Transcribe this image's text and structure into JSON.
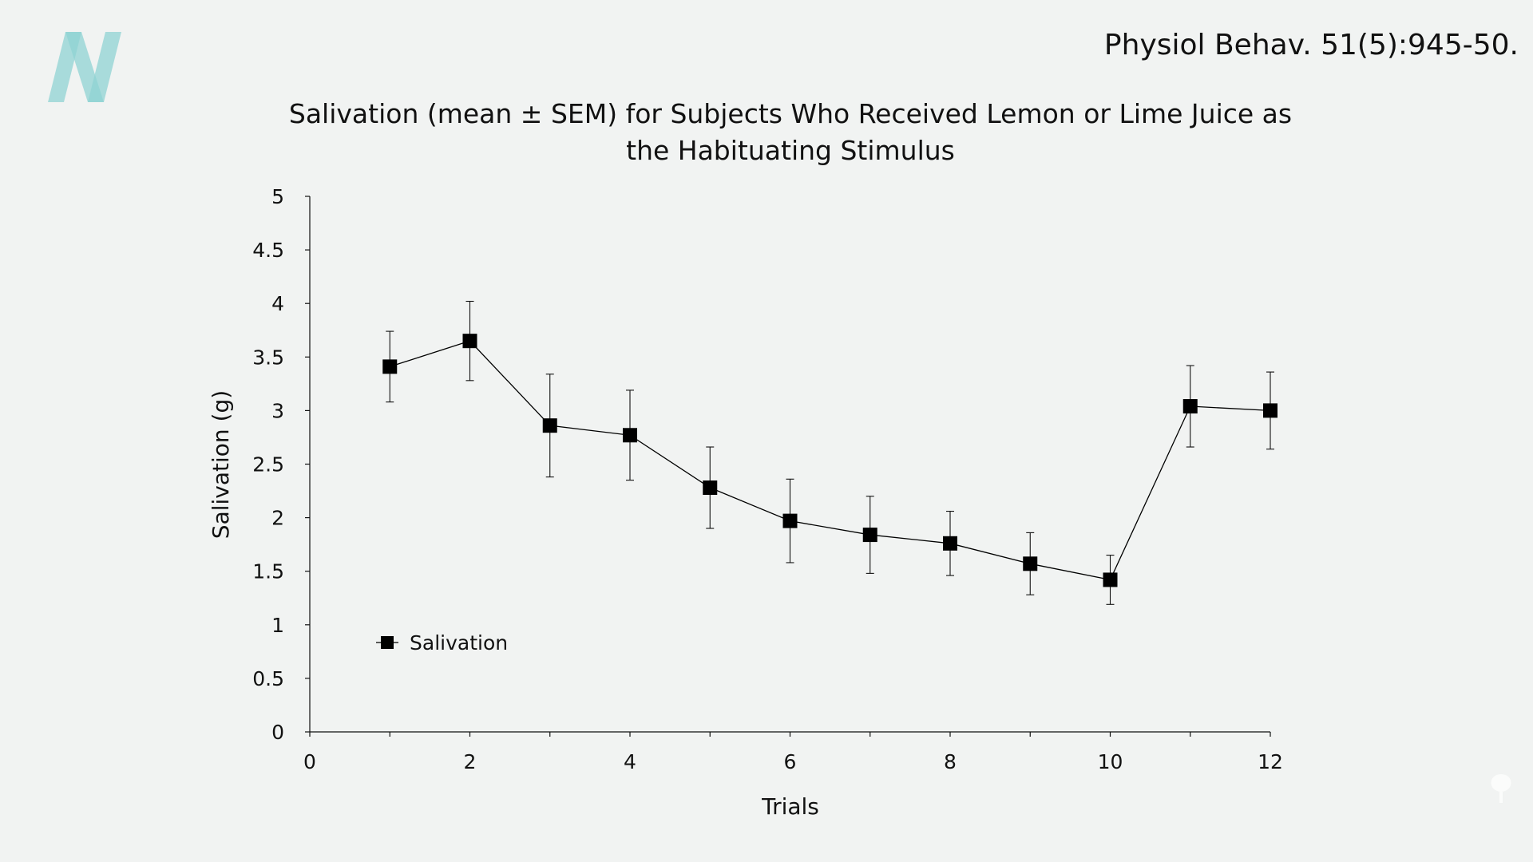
{
  "citation": "Physiol Behav. 51(5):945-50.",
  "colors": {
    "logo": "#8fd3d3",
    "series": "#000000",
    "background": "#f1f3f2"
  },
  "chart_data": {
    "type": "line",
    "title_lines": [
      "Salivation (mean ± SEM) for Subjects Who Received Lemon or Lime Juice as",
      "the Habituating Stimulus"
    ],
    "xlabel": "Trials",
    "ylabel": "Salivation (g)",
    "xlim": [
      0,
      12
    ],
    "ylim": [
      0,
      5
    ],
    "xticks": [
      "0",
      "2",
      "4",
      "6",
      "8",
      "10",
      "12"
    ],
    "yticks": [
      "0",
      "0.5",
      "1",
      "1.5",
      "2",
      "2.5",
      "3",
      "3.5",
      "4",
      "4.5",
      "5"
    ],
    "grid": false,
    "legend_placement": "lower-left",
    "series": [
      {
        "name": "Salivation",
        "marker": "square",
        "x": [
          1,
          2,
          3,
          4,
          5,
          6,
          7,
          8,
          9,
          10,
          11,
          12
        ],
        "y": [
          3.41,
          3.65,
          2.86,
          2.77,
          2.28,
          1.97,
          1.84,
          1.76,
          1.57,
          1.42,
          3.04,
          3.0
        ],
        "error": [
          0.33,
          0.37,
          0.48,
          0.42,
          0.38,
          0.39,
          0.36,
          0.3,
          0.29,
          0.23,
          0.38,
          0.36
        ]
      }
    ]
  }
}
